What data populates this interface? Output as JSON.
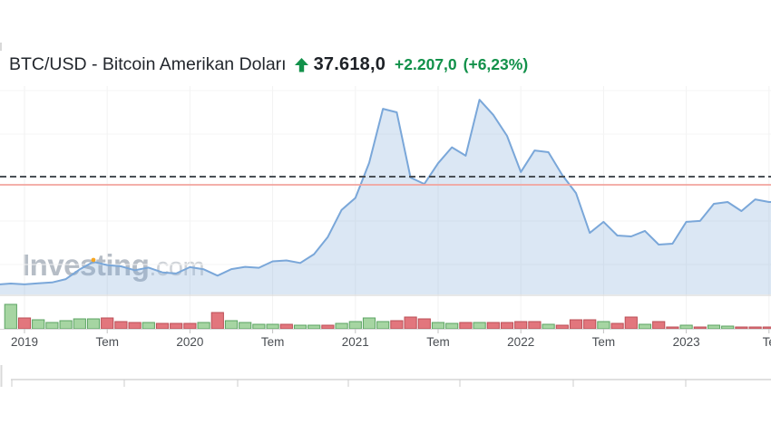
{
  "header": {
    "title": "BTC/USD - Bitcoin Amerikan Doları",
    "price": "37.618,0",
    "change": "+2.207,0",
    "change_pct": "(+6,23%)"
  },
  "watermark": {
    "bold": "Investing",
    "light": ".com"
  },
  "colors": {
    "accent_green": "#12914a",
    "title_text": "#23272d",
    "line_blue": "#7aa7d9",
    "area_fill": "rgba(124,168,217,0.28)",
    "volume_up_fill": "#a6d5a2",
    "volume_up_border": "#5ba362",
    "volume_down_fill": "#e2767d",
    "volume_down_border": "#bb4f56",
    "dashed_level_line": "#4a5056",
    "last_price_line": "#f2a49e",
    "marker_orange": "#f6a623",
    "grid": "#f2f2f2",
    "axis_line": "#d9d9d9",
    "tick_mark": "#c3c3c3",
    "tick_label": "#4a4e53",
    "nav_axis": "#cccccc"
  },
  "chart_data": {
    "type": "area",
    "title": "BTC/USD monthly price with volume, 2019-2023 (values in USD, read from chart)",
    "ylim": [
      0,
      71500
    ],
    "grid": true,
    "left_edge_value": 3450,
    "x_axis": {
      "tick_labels": [
        "2019",
        "Tem",
        "2020",
        "Tem",
        "2021",
        "Tem",
        "2022",
        "Tem",
        "2023",
        "Te"
      ],
      "tick_month_indices": [
        1,
        7,
        13,
        19,
        25,
        31,
        37,
        43,
        49,
        55
      ]
    },
    "series": [
      {
        "name": "BTC/USD",
        "months": [
          "2018-12",
          "2019-01",
          "2019-02",
          "2019-03",
          "2019-04",
          "2019-05",
          "2019-06",
          "2019-07",
          "2019-08",
          "2019-09",
          "2019-10",
          "2019-11",
          "2019-12",
          "2020-01",
          "2020-02",
          "2020-03",
          "2020-04",
          "2020-05",
          "2020-06",
          "2020-07",
          "2020-08",
          "2020-09",
          "2020-10",
          "2020-11",
          "2020-12",
          "2021-01",
          "2021-02",
          "2021-03",
          "2021-04",
          "2021-05",
          "2021-06",
          "2021-07",
          "2021-08",
          "2021-09",
          "2021-10",
          "2021-11",
          "2021-12",
          "2022-01",
          "2022-02",
          "2022-03",
          "2022-04",
          "2022-05",
          "2022-06",
          "2022-07",
          "2022-08",
          "2022-09",
          "2022-10",
          "2022-11",
          "2022-12",
          "2023-01",
          "2023-02",
          "2023-03",
          "2023-04",
          "2023-05",
          "2023-06",
          "2023-07"
        ],
        "values": [
          3742,
          3437,
          3816,
          4103,
          5269,
          8574,
          11200,
          10085,
          9630,
          8293,
          9199,
          7569,
          7193,
          9350,
          8599,
          6438,
          8658,
          9461,
          9137,
          11351,
          11655,
          10776,
          13797,
          19713,
          28994,
          33114,
          45137,
          63700,
          62500,
          40100,
          37900,
          45000,
          50500,
          47600,
          66800,
          61600,
          54400,
          42000,
          49400,
          48800,
          41000,
          34800,
          21100,
          24900,
          20200,
          19900,
          21800,
          17100,
          17400,
          24900,
          25200,
          31100,
          31700,
          28600,
          32600,
          31700
        ]
      }
    ],
    "marker": {
      "month": "2019-06",
      "color": "#f6a623"
    },
    "levels": {
      "last_price_line": 37618,
      "dashed_line": 40400
    },
    "volume": {
      "type": "bar",
      "unit": "relative_height",
      "values": [
        27,
        12,
        10,
        7,
        9,
        11,
        11,
        12,
        8,
        7,
        7,
        6,
        6,
        6,
        7,
        18,
        9,
        7,
        5,
        5,
        5,
        4,
        4,
        4,
        6,
        8,
        12,
        8,
        9,
        13,
        11,
        7,
        6,
        7,
        7,
        7,
        7,
        8,
        8,
        5,
        4,
        10,
        10,
        8,
        6,
        13,
        5,
        8,
        2,
        4,
        2,
        4,
        3,
        2,
        2,
        2
      ],
      "direction": [
        "up",
        "down",
        "up",
        "up",
        "up",
        "up",
        "up",
        "down",
        "down",
        "down",
        "up",
        "down",
        "down",
        "down",
        "up",
        "down",
        "up",
        "up",
        "up",
        "up",
        "down",
        "up",
        "up",
        "down",
        "up",
        "up",
        "up",
        "up",
        "down",
        "down",
        "down",
        "up",
        "up",
        "down",
        "up",
        "down",
        "down",
        "down",
        "down",
        "up",
        "down",
        "down",
        "down",
        "up",
        "down",
        "down",
        "up",
        "down",
        "down",
        "up",
        "down",
        "up",
        "up",
        "down",
        "down",
        "down"
      ]
    }
  }
}
